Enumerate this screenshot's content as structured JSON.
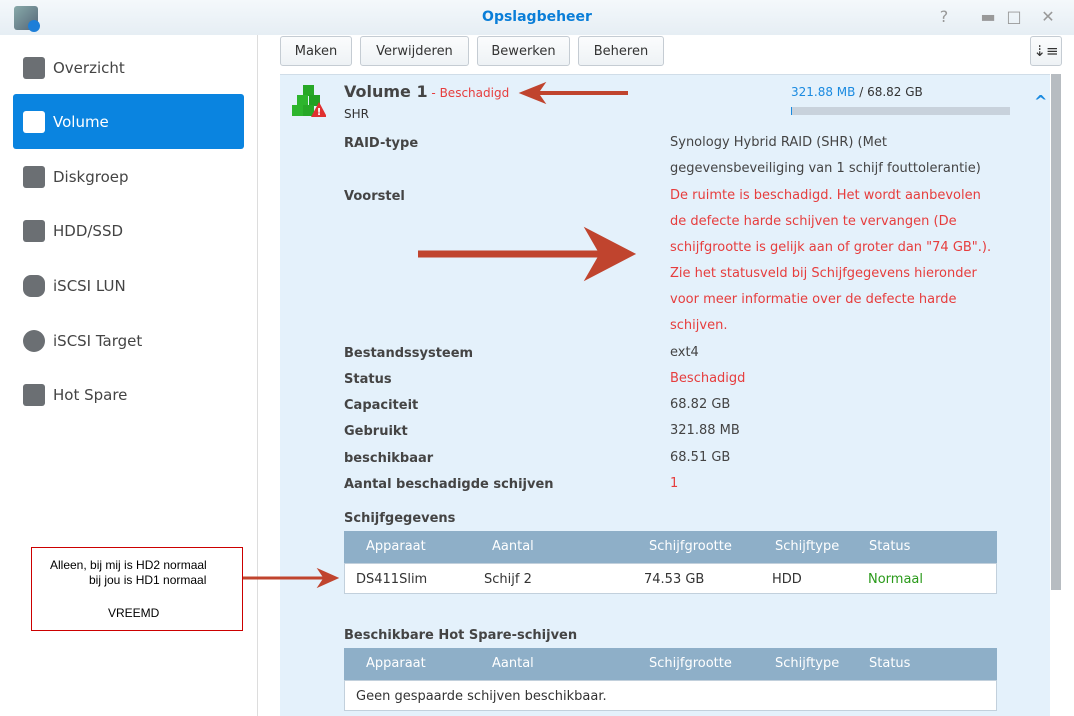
{
  "window": {
    "title": "Opslagbeheer",
    "help": "?",
    "minimize": "▬",
    "maximize": "□",
    "close": "✕"
  },
  "sidebar": {
    "items": [
      {
        "label": "Overzicht",
        "icon": "overview-icon"
      },
      {
        "label": "Volume",
        "icon": "cubes-icon",
        "selected": true
      },
      {
        "label": "Diskgroep",
        "icon": "diskgroup-icon"
      },
      {
        "label": "HDD/SSD",
        "icon": "hdd-icon"
      },
      {
        "label": "iSCSI LUN",
        "icon": "database-icon"
      },
      {
        "label": "iSCSI Target",
        "icon": "globe-icon"
      },
      {
        "label": "Hot Spare",
        "icon": "plus-icon"
      }
    ]
  },
  "toolbar": {
    "create": "Maken",
    "delete": "Verwijderen",
    "edit": "Bewerken",
    "manage": "Beheren",
    "sort_icon": "sort-icon"
  },
  "volume": {
    "name": "Volume 1",
    "separator": " - ",
    "status": "Beschadigd",
    "type": "SHR",
    "used": "321.88 MB",
    "total": "/ 68.82 GB",
    "usage_percent": 0.46,
    "details": [
      {
        "label": "RAID-type",
        "value": "Synology Hybrid RAID (SHR) (Met gegevensbeveiliging van 1 schijf fouttolerantie)"
      },
      {
        "label": "Voorstel",
        "value": "De ruimte is beschadigd. Het wordt aanbevolen de defecte harde schijven te vervangen (De schijfgrootte is gelijk aan of groter dan \"74 GB\".). Zie het statusveld bij Schijfgegevens hieronder voor meer informatie over de defecte harde schijven."
      },
      {
        "label": "Bestandssysteem",
        "value": "ext4"
      },
      {
        "label": "Status",
        "value": "Beschadigd"
      },
      {
        "label": "Capaciteit",
        "value": "68.82 GB"
      },
      {
        "label": "Gebruikt",
        "value": "321.88 MB"
      },
      {
        "label": "beschikbaar",
        "value": "68.51 GB"
      },
      {
        "label": "Aantal beschadigde schijven",
        "value": "1"
      }
    ]
  },
  "disks": {
    "title": "Schijfgegevens",
    "headers": [
      "Apparaat",
      "Aantal",
      "Schijfgrootte",
      "Schijftype",
      "Status"
    ],
    "rows": [
      [
        "DS411Slim",
        "Schijf 2",
        "74.53 GB",
        "HDD",
        "Normaal"
      ]
    ]
  },
  "hotspare": {
    "title": "Beschikbare Hot Spare-schijven",
    "headers": [
      "Apparaat",
      "Aantal",
      "Schijfgrootte",
      "Schijftype",
      "Status"
    ],
    "empty": "Geen gespaarde schijven beschikbaar."
  },
  "annotation": {
    "line1": "Alleen, bij mij is HD2 normaal",
    "line2": "bij jou is HD1 normaal",
    "line3": "VREEMD"
  },
  "colors": {
    "accent": "#0a84e0",
    "danger": "#e63d3d",
    "ok": "#2a9a1a",
    "arrow": "#c0442e"
  }
}
